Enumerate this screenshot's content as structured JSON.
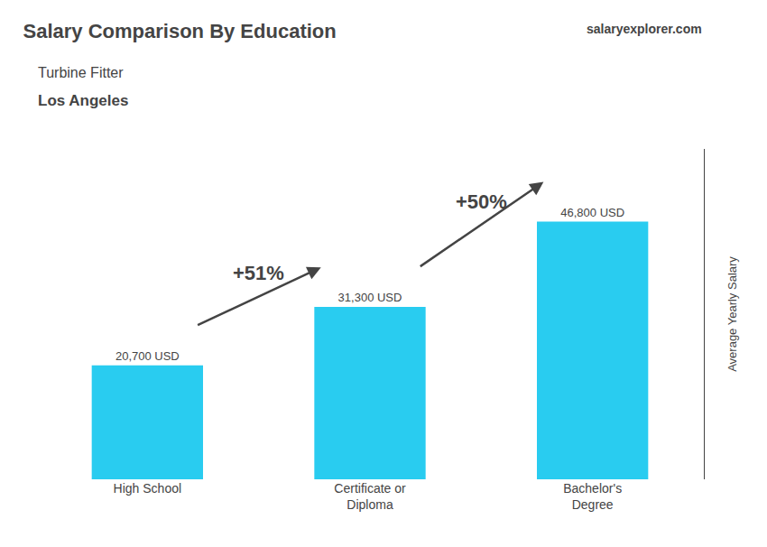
{
  "chart_data": {
    "type": "bar",
    "title": "Salary Comparison By Education",
    "subtitle": [
      "Turbine Fitter",
      "Los Angeles"
    ],
    "source": "salaryexplorer.com",
    "ylabel": "Average Yearly Salary",
    "categories": [
      "High School",
      "Certificate or\nDiploma",
      "Bachelor's\nDegree"
    ],
    "values": [
      20700,
      31300,
      46800
    ],
    "value_labels": [
      "20,700 USD",
      "31,300 USD",
      "46,800 USD"
    ],
    "data_labels": true,
    "color": "#29ccf0",
    "annotations": [
      "+51%",
      "+50%"
    ],
    "ylim": [
      0,
      60000
    ],
    "grid": false,
    "tick_labels": "x"
  }
}
